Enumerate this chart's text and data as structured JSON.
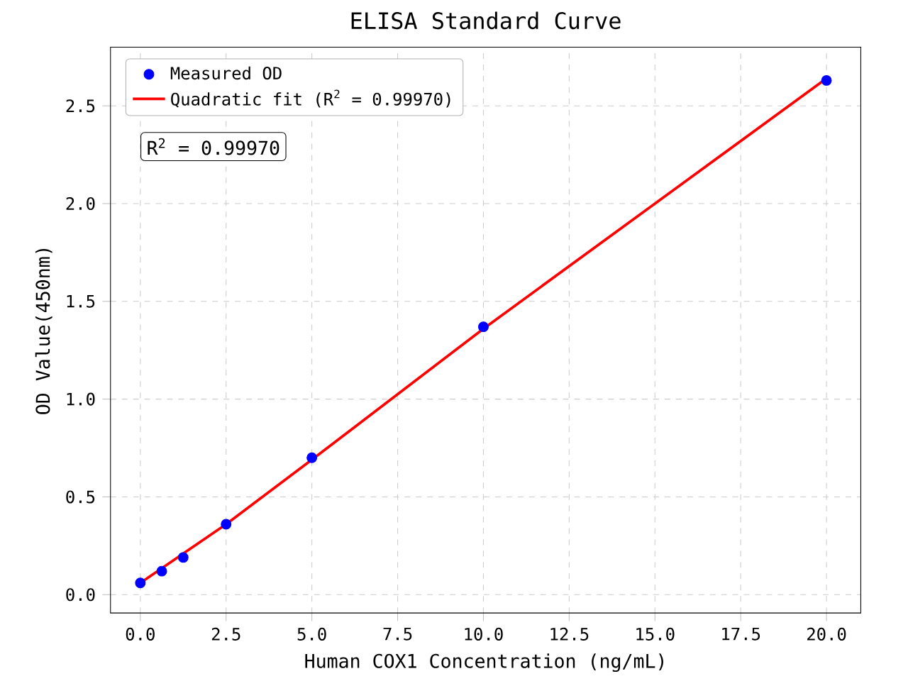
{
  "chart_data": {
    "type": "scatter",
    "title": "ELISA Standard Curve",
    "xlabel": "Human COX1 Concentration (ng/mL)",
    "ylabel": "OD Value(450nm)",
    "annotations": [
      "R$^{2}$ = 0.99970"
    ],
    "series": [
      {
        "name": "Measured OD",
        "color": "#0000ff",
        "marker": "circle",
        "x": [
          0,
          0.625,
          1.25,
          2.5,
          5,
          10,
          20
        ],
        "values": [
          0.06,
          0.12,
          0.19,
          0.36,
          0.7,
          1.37,
          2.63
        ]
      },
      {
        "name": "Quadratic fit (R$^{2}$ = 0.99970)",
        "type": "line",
        "color": "#ff0000",
        "line_style": "solid",
        "marker": "none",
        "x": [
          0,
          2.5,
          5,
          10,
          15,
          20
        ],
        "values": [
          0.06,
          0.36,
          0.69,
          1.36,
          2.0,
          2.64
        ]
      }
    ],
    "xlim": [
      -0.87,
      21.0
    ],
    "ylim": [
      -0.094,
      2.8
    ],
    "xticks": [
      {
        "value": 0,
        "label": "0.0"
      },
      {
        "value": 2.5,
        "label": "2.5"
      },
      {
        "value": 5,
        "label": "5.0"
      },
      {
        "value": 7.5,
        "label": "7.5"
      },
      {
        "value": 10,
        "label": "10.0"
      },
      {
        "value": 12.5,
        "label": "12.5"
      },
      {
        "value": 15,
        "label": "15.0"
      },
      {
        "value": 17.5,
        "label": "17.5"
      },
      {
        "value": 20,
        "label": "20.0"
      }
    ],
    "yticks": [
      {
        "value": 0,
        "label": "0.0"
      },
      {
        "value": 0.5,
        "label": "0.5"
      },
      {
        "value": 1,
        "label": "1.0"
      },
      {
        "value": 1.5,
        "label": "1.5"
      },
      {
        "value": 2,
        "label": "2.0"
      },
      {
        "value": 2.5,
        "label": "2.5"
      }
    ],
    "grid": true,
    "legend": "top left"
  }
}
